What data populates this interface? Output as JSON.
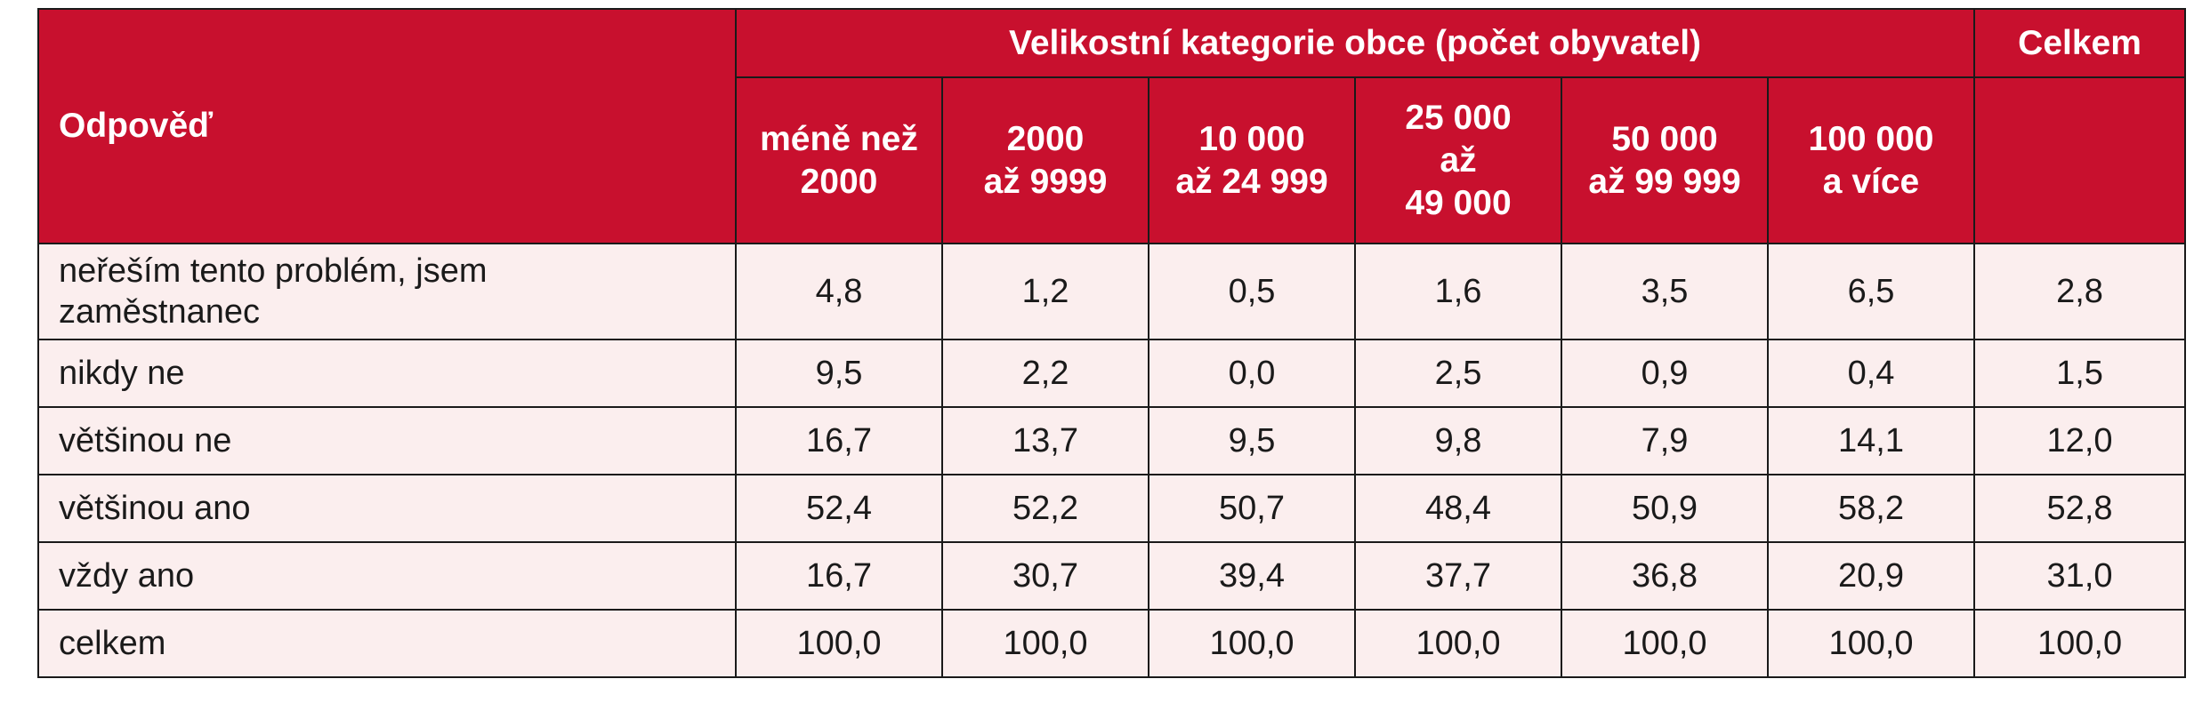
{
  "table": {
    "header": {
      "answer": "Odpověď",
      "group": "Velikostní kategorie obce (počet obyvatel)",
      "total": "Celkem",
      "columns": [
        "méně než\n2000",
        "2000\naž 9999",
        "10 000\naž 24 999",
        "25 000\naž\n49 000",
        "50 000\naž 99 999",
        "100 000\na více"
      ]
    },
    "rows": [
      {
        "label": "neřeším tento problém, jsem\nzaměstnanec",
        "values": [
          "4,8",
          "1,2",
          "0,5",
          "1,6",
          "3,5",
          "6,5",
          "2,8"
        ]
      },
      {
        "label": "nikdy ne",
        "values": [
          "9,5",
          "2,2",
          "0,0",
          "2,5",
          "0,9",
          "0,4",
          "1,5"
        ]
      },
      {
        "label": "většinou ne",
        "values": [
          "16,7",
          "13,7",
          "9,5",
          "9,8",
          "7,9",
          "14,1",
          "12,0"
        ]
      },
      {
        "label": "většinou ano",
        "values": [
          "52,4",
          "52,2",
          "50,7",
          "48,4",
          "50,9",
          "58,2",
          "52,8"
        ]
      },
      {
        "label": "vždy ano",
        "values": [
          "16,7",
          "30,7",
          "39,4",
          "37,7",
          "36,8",
          "20,9",
          "31,0"
        ]
      },
      {
        "label": "celkem",
        "values": [
          "100,0",
          "100,0",
          "100,0",
          "100,0",
          "100,0",
          "100,0",
          "100,0"
        ]
      }
    ],
    "colors": {
      "header_bg": "#c8102e",
      "header_text": "#ffffff",
      "body_bg": "#fbeeee",
      "border": "#1a1a1a"
    }
  }
}
